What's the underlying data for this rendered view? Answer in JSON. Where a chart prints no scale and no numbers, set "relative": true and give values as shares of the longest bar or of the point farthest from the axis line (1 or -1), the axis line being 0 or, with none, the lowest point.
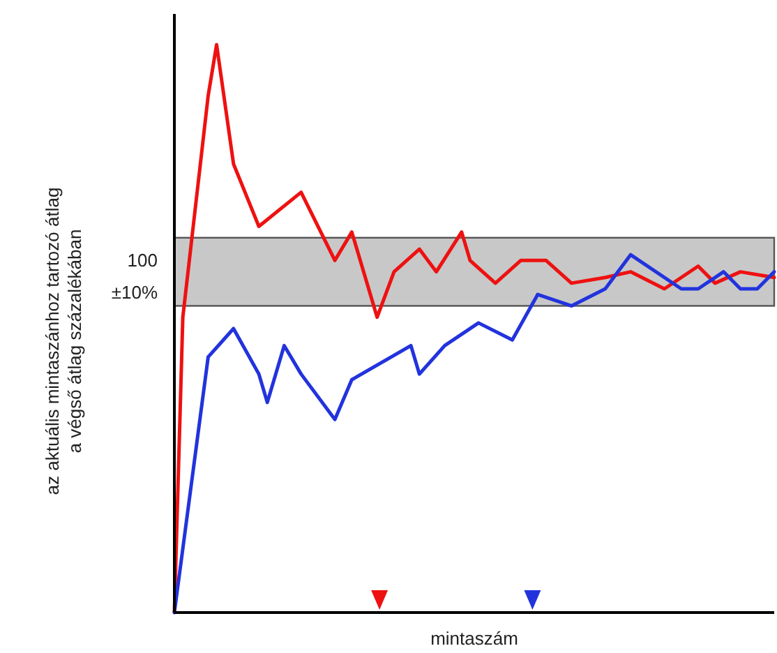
{
  "chart_data": {
    "type": "line",
    "relative": true,
    "xlabel": "mintaszám",
    "ylabel": "az aktuális mintaszánhoz tartozó átlag\na végső átlag százalékában",
    "annotations": [
      "100"
    ],
    "categories": [
      null,
      null,
      null,
      null,
      null,
      null,
      null,
      null,
      null,
      null,
      null,
      null,
      null,
      null,
      null,
      null,
      null,
      null,
      null,
      null,
      null,
      null,
      null,
      null,
      null,
      null,
      null,
      null,
      null,
      null,
      null,
      null,
      null,
      null,
      null,
      null,
      null,
      null,
      null,
      null,
      null,
      null,
      null,
      null,
      null,
      null,
      null,
      null,
      null,
      null,
      null,
      null,
      null,
      null,
      null,
      null,
      null,
      null,
      null,
      null,
      null,
      null,
      null,
      null,
      null,
      null,
      null,
      null,
      null,
      null,
      null,
      null
    ],
    "bands": [
      {
        "axis": "y",
        "from": 0.54,
        "to": 0.66,
        "label": "±10%",
        "color": "#c8c8c8"
      }
    ],
    "series": [
      {
        "color": "#ee1111",
        "values": [
          0,
          0.52,
          null,
          null,
          0.91,
          1,
          null,
          0.79,
          null,
          null,
          0.68,
          null,
          null,
          null,
          null,
          0.74,
          null,
          null,
          null,
          0.62,
          null,
          0.67,
          null,
          null,
          0.52,
          null,
          0.6,
          null,
          null,
          0.64,
          null,
          0.6,
          null,
          null,
          0.67,
          0.62,
          null,
          null,
          0.58,
          null,
          null,
          0.62,
          null,
          null,
          0.62,
          null,
          null,
          0.58,
          null,
          null,
          null,
          0.59,
          null,
          null,
          0.6,
          null,
          null,
          null,
          0.57,
          null,
          null,
          null,
          0.61,
          null,
          0.58,
          null,
          null,
          0.6,
          null,
          null,
          null,
          0.59
        ]
      },
      {
        "color": "#2233dd",
        "values": [
          0,
          null,
          null,
          null,
          0.45,
          null,
          null,
          0.5,
          null,
          null,
          0.42,
          0.37,
          null,
          0.47,
          null,
          0.42,
          null,
          null,
          null,
          0.34,
          null,
          0.41,
          null,
          null,
          null,
          null,
          null,
          null,
          0.47,
          0.42,
          null,
          null,
          0.47,
          null,
          null,
          null,
          0.51,
          null,
          null,
          null,
          0.48,
          null,
          null,
          0.56,
          null,
          null,
          null,
          0.54,
          null,
          null,
          null,
          0.57,
          null,
          null,
          0.63,
          null,
          null,
          null,
          null,
          null,
          0.57,
          null,
          0.57,
          null,
          null,
          0.6,
          null,
          0.57,
          null,
          0.57,
          null,
          0.6
        ]
      }
    ]
  }
}
